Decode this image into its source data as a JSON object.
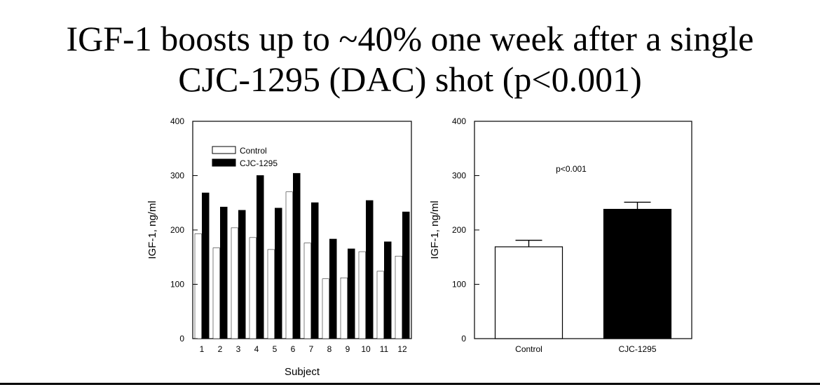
{
  "slide": {
    "title_line1": "IGF-1 boosts up to ~40% one week after a single",
    "title_line2": "CJC-1295 (DAC) shot (p<0.001)"
  },
  "chart_data": [
    {
      "type": "bar",
      "title": "",
      "xlabel": "Subject",
      "ylabel": "IGF-1, ng/ml",
      "ylim": [
        0,
        400
      ],
      "yticks": [
        0,
        100,
        200,
        300,
        400
      ],
      "categories": [
        "1",
        "2",
        "3",
        "4",
        "5",
        "6",
        "7",
        "8",
        "9",
        "10",
        "11",
        "12"
      ],
      "series": [
        {
          "name": "Control",
          "color": "#ffffff",
          "values": [
            193,
            167,
            204,
            186,
            164,
            270,
            176,
            110,
            112,
            160,
            124,
            152
          ]
        },
        {
          "name": "CJC-1295",
          "color": "#000000",
          "values": [
            268,
            242,
            236,
            300,
            240,
            304,
            250,
            183,
            165,
            254,
            178,
            233
          ]
        }
      ],
      "legend": "top-left",
      "grid": false
    },
    {
      "type": "bar",
      "title": "",
      "xlabel": "",
      "ylabel": "IGF-1, ng/ml",
      "ylim": [
        0,
        400
      ],
      "yticks": [
        0,
        100,
        200,
        300,
        400
      ],
      "categories": [
        "Control",
        "CJC-1295"
      ],
      "values": [
        169,
        238
      ],
      "errors": [
        12,
        13
      ],
      "colors": [
        "#ffffff",
        "#000000"
      ],
      "annotation": "p<0.001",
      "grid": false
    }
  ]
}
